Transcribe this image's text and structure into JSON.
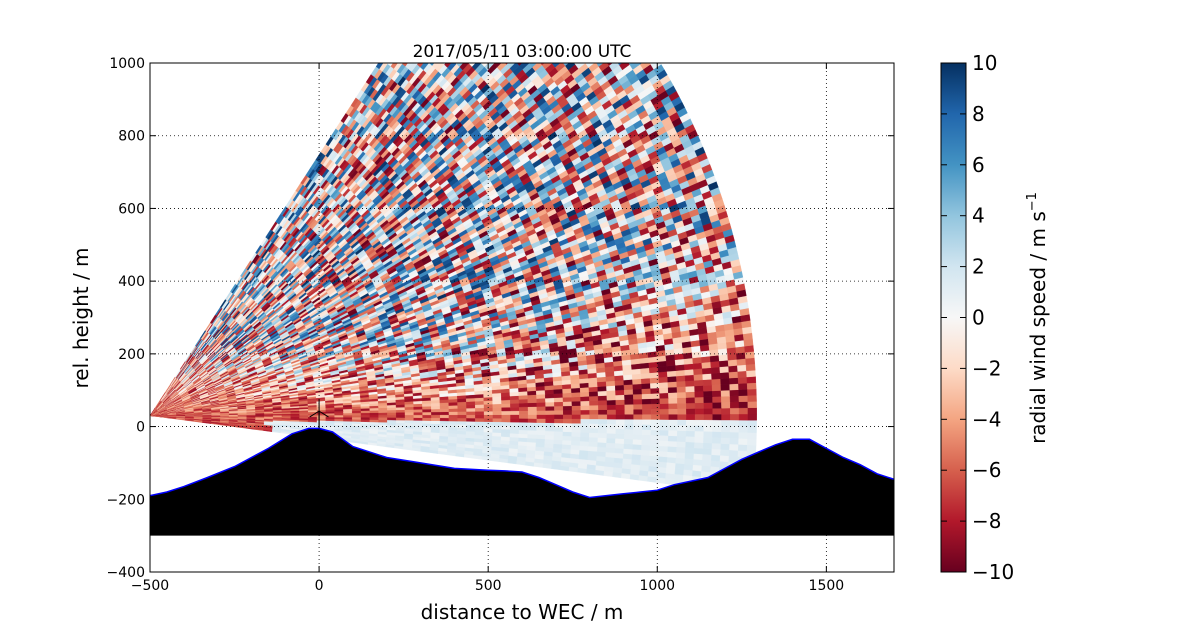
{
  "chart_data": {
    "type": "heatmap",
    "title": "2017/05/11 03:00:00 UTC",
    "xlabel": "distance to WEC / m",
    "ylabel": "rel. height / m",
    "xlim": [
      -500,
      1700
    ],
    "ylim": [
      -400,
      1000
    ],
    "xticks": [
      -500,
      0,
      500,
      1000,
      1500
    ],
    "yticks": [
      -400,
      -200,
      0,
      200,
      400,
      600,
      800,
      1000
    ],
    "xtick_labels": [
      "−500",
      "0",
      "500",
      "1000",
      "1500"
    ],
    "ytick_labels": [
      "−400",
      "−200",
      "0",
      "200",
      "400",
      "600",
      "800",
      "1000"
    ],
    "grid": true,
    "colorbar": {
      "label": "radial wind speed / m s",
      "label_superscript": "−1",
      "range": [
        -10,
        10
      ],
      "ticks": [
        -10,
        -8,
        -6,
        -4,
        -2,
        0,
        2,
        4,
        6,
        8,
        10
      ],
      "tick_labels": [
        "−10",
        "−8",
        "−6",
        "−4",
        "−2",
        "0",
        "2",
        "4",
        "6",
        "8",
        "10"
      ],
      "colormap": "RdBu",
      "colors": [
        "#67001f",
        "#b2182b",
        "#d6604d",
        "#f4a582",
        "#fddbc7",
        "#f7f7f7",
        "#d1e5f0",
        "#92c5de",
        "#4393c3",
        "#2166ac",
        "#053061"
      ]
    },
    "scan": {
      "origin": [
        -500,
        30
      ],
      "max_range_m": 1780,
      "elevation_range_deg": [
        -7,
        55
      ]
    },
    "terrain_profile": {
      "x": [
        -500,
        -450,
        -400,
        -330,
        -250,
        -150,
        -80,
        -30,
        0,
        40,
        100,
        200,
        300,
        400,
        500,
        550,
        600,
        650,
        700,
        750,
        800,
        850,
        900,
        950,
        1000,
        1050,
        1100,
        1150,
        1200,
        1250,
        1300,
        1350,
        1400,
        1450,
        1500,
        1550,
        1600,
        1650,
        1700
      ],
      "y": [
        -190,
        -180,
        -165,
        -140,
        -110,
        -60,
        -20,
        -5,
        -5,
        -15,
        -55,
        -85,
        -100,
        -115,
        -120,
        -122,
        -125,
        -140,
        -160,
        -180,
        -195,
        -190,
        -185,
        -180,
        -175,
        -160,
        -150,
        -140,
        -115,
        -90,
        -70,
        -50,
        -35,
        -35,
        -60,
        -85,
        -105,
        -130,
        -145
      ],
      "base": -300,
      "color": "#000000",
      "outline": "#0000ff"
    },
    "turbine": {
      "x": 0,
      "hub_height_m": 95,
      "rotor_radius_m": 40
    }
  }
}
